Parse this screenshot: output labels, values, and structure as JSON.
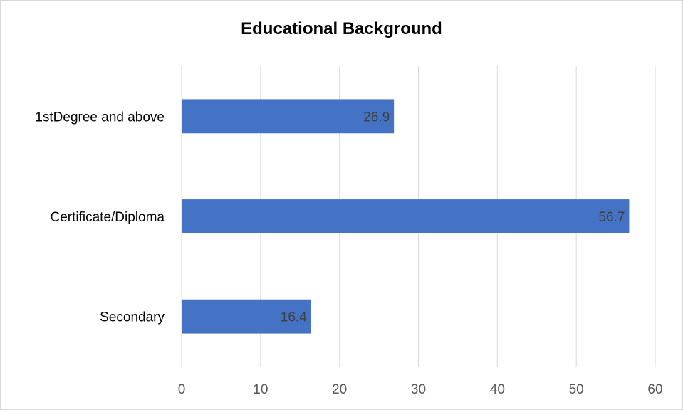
{
  "chart_data": {
    "type": "bar",
    "orientation": "horizontal",
    "title": "Educational Background",
    "categories": [
      "Secondary",
      "Certificate/Diploma",
      "1stDegree and above"
    ],
    "values": [
      16.4,
      56.7,
      26.9
    ],
    "data_labels": [
      "16.4",
      "56.7",
      "26.9"
    ],
    "xlabel": "",
    "ylabel": "",
    "xlim": [
      0,
      60
    ],
    "x_ticks": [
      0,
      10,
      20,
      30,
      40,
      50,
      60
    ],
    "x_tick_labels": [
      "0",
      "10",
      "20",
      "30",
      "40",
      "50",
      "60"
    ],
    "grid": "vertical",
    "legend": "none",
    "bar_color": "#4472C4"
  }
}
